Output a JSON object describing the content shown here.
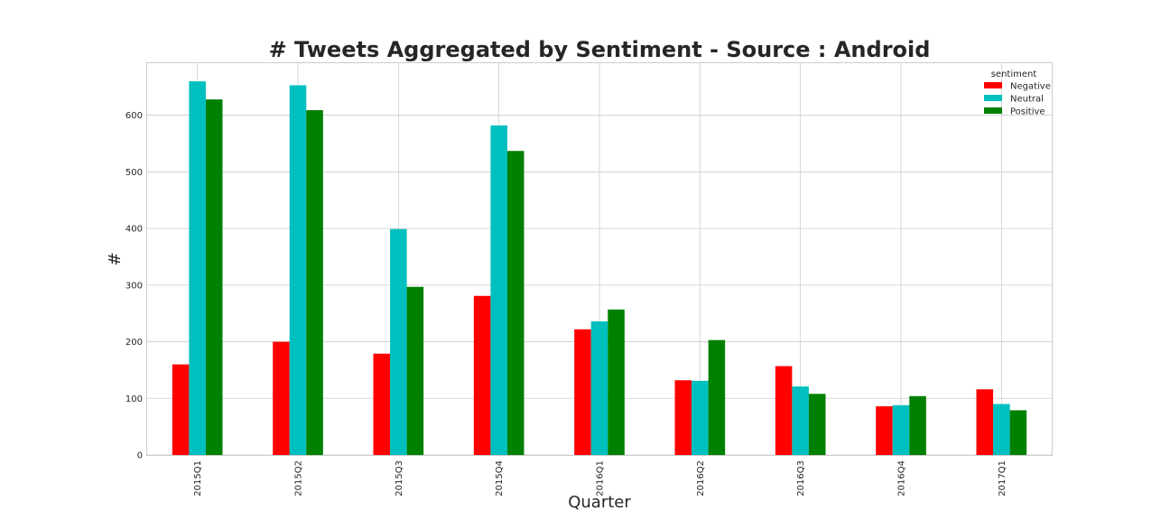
{
  "chart_data": {
    "type": "bar",
    "title": "# Tweets Aggregated by Sentiment - Source : Android",
    "xlabel": "Quarter",
    "ylabel": "#",
    "categories": [
      "2015Q1",
      "2015Q2",
      "2015Q3",
      "2015Q4",
      "2016Q1",
      "2016Q2",
      "2016Q3",
      "2016Q4",
      "2017Q1"
    ],
    "series": [
      {
        "name": "Negative",
        "color": "#ff0000",
        "values": [
          160,
          200,
          179,
          281,
          222,
          132,
          157,
          86,
          116
        ]
      },
      {
        "name": "Neutral",
        "color": "#00bfbf",
        "values": [
          660,
          653,
          399,
          582,
          236,
          131,
          121,
          88,
          90
        ]
      },
      {
        "name": "Positive",
        "color": "#008000",
        "values": [
          628,
          609,
          297,
          537,
          257,
          203,
          108,
          104,
          79
        ]
      }
    ],
    "ylim": [
      0,
      692
    ],
    "yticks": [
      0,
      100,
      200,
      300,
      400,
      500,
      600
    ],
    "grid": true,
    "legend": {
      "title": "sentiment",
      "position": "top-right"
    }
  }
}
